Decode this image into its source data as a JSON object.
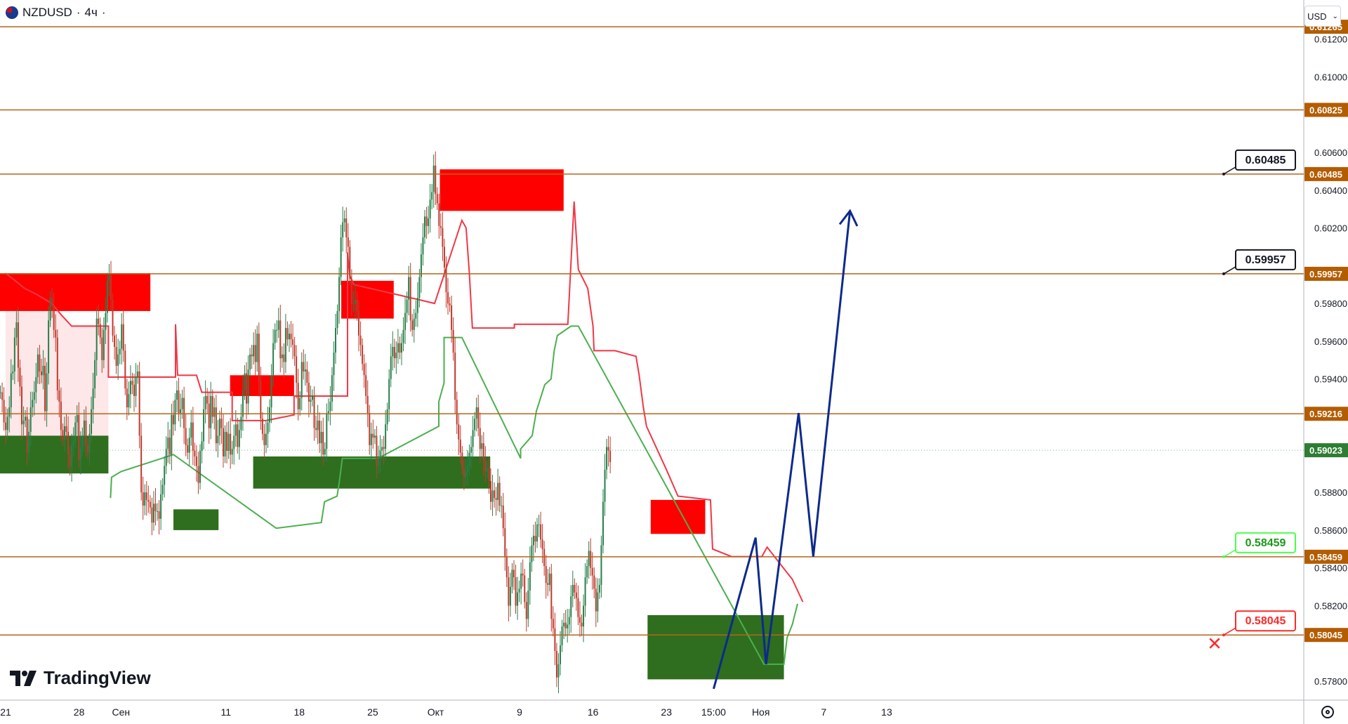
{
  "header": {
    "symbol": "NZDUSD",
    "separator": "·",
    "interval": "4ч",
    "currency": "USD"
  },
  "branding": {
    "logo_text": "TradingView"
  },
  "colors": {
    "level_line": "#b5651d",
    "level_label": "#b35c00",
    "resistance": "#ff0000",
    "support": "#2e6e1e",
    "trail_red": "#f23645",
    "trail_green": "#4caf50",
    "candle_up": "#26804a",
    "candle_down": "#c0392b",
    "forecast": "#0d2a8c",
    "callout_green": "#4cff4c",
    "callout_red": "#ff2a2a"
  },
  "chart_data": {
    "type": "candlestick",
    "symbol": "NZDUSD",
    "timeframe": "4h",
    "ylim": [
      0.577,
      0.6131
    ],
    "y_ticks": [
      "0.61200",
      "0.61000",
      "0.60600",
      "0.60400",
      "0.60200",
      "0.59800",
      "0.59600",
      "0.59400",
      "0.58800",
      "0.58600",
      "0.58400",
      "0.58200",
      "0.57800"
    ],
    "x_ticks": [
      {
        "label": "21",
        "day": 0
      },
      {
        "label": "28",
        "day": 7
      },
      {
        "label": "Сен",
        "day": 11
      },
      {
        "label": "11",
        "day": 21
      },
      {
        "label": "18",
        "day": 28
      },
      {
        "label": "25",
        "day": 35
      },
      {
        "label": "Окт",
        "day": 41
      },
      {
        "label": "9",
        "day": 49
      },
      {
        "label": "16",
        "day": 56
      },
      {
        "label": "23",
        "day": 63
      },
      {
        "label": "15:00",
        "day": 67.5
      },
      {
        "label": "Ноя",
        "day": 72
      },
      {
        "label": "7",
        "day": 78
      },
      {
        "label": "13",
        "day": 84
      }
    ],
    "levels": [
      {
        "value": 0.61265,
        "label": "0.61265"
      },
      {
        "value": 0.60825,
        "label": "0.60825"
      },
      {
        "value": 0.60485,
        "label": "0.60485"
      },
      {
        "value": 0.59957,
        "label": "0.59957"
      },
      {
        "value": 0.59216,
        "label": "0.59216"
      },
      {
        "value": 0.58459,
        "label": "0.58459"
      },
      {
        "value": 0.58045,
        "label": "0.58045"
      }
    ],
    "current_price": {
      "value": 0.59023,
      "label": "0.59023"
    },
    "callouts": [
      {
        "value": 0.60485,
        "label": "0.60485",
        "style": "black"
      },
      {
        "value": 0.59957,
        "label": "0.59957",
        "style": "black"
      },
      {
        "value": 0.58459,
        "label": "0.58459",
        "style": "green"
      },
      {
        "value": 0.58045,
        "label": "0.58045",
        "style": "red"
      }
    ],
    "stop_marker": {
      "symbol": "✕",
      "value": 0.58
    },
    "zones": [
      {
        "kind": "resistance",
        "d0": -1,
        "d1": 13.8,
        "top": 0.5996,
        "bottom": 0.5976
      },
      {
        "kind": "resistance",
        "d0": 32,
        "d1": 37,
        "top": 0.5992,
        "bottom": 0.5972
      },
      {
        "kind": "resistance",
        "d0": 21.4,
        "d1": 27.5,
        "top": 0.5942,
        "bottom": 0.5931
      },
      {
        "kind": "resistance",
        "d0": 41.4,
        "d1": 53.2,
        "top": 0.6051,
        "bottom": 0.6029
      },
      {
        "kind": "resistance",
        "d0": 61.5,
        "d1": 66.7,
        "top": 0.5876,
        "bottom": 0.5858
      },
      {
        "kind": "support",
        "d0": -1,
        "d1": 9.8,
        "top": 0.591,
        "bottom": 0.589
      },
      {
        "kind": "support",
        "d0": 16,
        "d1": 20.3,
        "top": 0.5871,
        "bottom": 0.586
      },
      {
        "kind": "support",
        "d0": 23.6,
        "d1": 46.2,
        "top": 0.5899,
        "bottom": 0.5882
      },
      {
        "kind": "support",
        "d0": 61.2,
        "d1": 74.2,
        "top": 0.5815,
        "bottom": 0.5781
      }
    ],
    "trail_red": [
      [
        0,
        0.5996
      ],
      [
        0.7,
        0.5993
      ],
      [
        1.8,
        0.5988
      ],
      [
        2.9,
        0.5985
      ],
      [
        4.4,
        0.598
      ],
      [
        5.3,
        0.5974
      ],
      [
        6.3,
        0.5968
      ],
      [
        9.8,
        0.5968
      ],
      [
        9.8,
        0.5941
      ],
      [
        16.2,
        0.5941
      ],
      [
        16.2,
        0.5969
      ],
      [
        16.4,
        0.5942
      ],
      [
        18.2,
        0.5942
      ],
      [
        18.7,
        0.5933
      ],
      [
        21.6,
        0.5933
      ],
      [
        21.6,
        0.5918
      ],
      [
        24.8,
        0.5918
      ],
      [
        27.5,
        0.5921
      ],
      [
        27.5,
        0.5931
      ],
      [
        32.6,
        0.5931
      ],
      [
        32.6,
        0.6007
      ],
      [
        32.8,
        0.5995
      ],
      [
        33.2,
        0.599
      ],
      [
        39.4,
        0.5982
      ],
      [
        40.9,
        0.598
      ],
      [
        43.5,
        0.6024
      ],
      [
        43.9,
        0.602
      ],
      [
        44.2,
        0.5997
      ],
      [
        44.5,
        0.5967
      ],
      [
        48.5,
        0.5967
      ],
      [
        48.5,
        0.5969
      ],
      [
        53.6,
        0.5969
      ],
      [
        54.2,
        0.6034
      ],
      [
        54.6,
        0.5998
      ],
      [
        55.5,
        0.5988
      ],
      [
        56.0,
        0.5968
      ],
      [
        56.1,
        0.5955
      ],
      [
        58.1,
        0.5955
      ],
      [
        60.1,
        0.5952
      ],
      [
        60.4,
        0.5942
      ],
      [
        60.8,
        0.5925
      ],
      [
        61.1,
        0.5915
      ],
      [
        63.0,
        0.5892
      ],
      [
        64.1,
        0.5878
      ],
      [
        67.2,
        0.5876
      ],
      [
        67.4,
        0.585
      ],
      [
        69.2,
        0.5846
      ],
      [
        72.1,
        0.5846
      ],
      [
        72.6,
        0.5851
      ],
      [
        74.0,
        0.5841
      ],
      [
        75.0,
        0.5834
      ],
      [
        76.0,
        0.5822
      ]
    ],
    "trail_green": [
      [
        10,
        0.5877
      ],
      [
        10.1,
        0.5888
      ],
      [
        11.0,
        0.5891
      ],
      [
        16.0,
        0.59
      ],
      [
        25.8,
        0.5861
      ],
      [
        30.1,
        0.5864
      ],
      [
        30.4,
        0.5875
      ],
      [
        31.6,
        0.5878
      ],
      [
        31.8,
        0.5885
      ],
      [
        32.1,
        0.5898
      ],
      [
        35.5,
        0.5898
      ],
      [
        41.3,
        0.5915
      ],
      [
        41.3,
        0.5928
      ],
      [
        41.8,
        0.5938
      ],
      [
        41.8,
        0.5962
      ],
      [
        43.5,
        0.5962
      ],
      [
        49.1,
        0.5898
      ],
      [
        49.1,
        0.5903
      ],
      [
        50.2,
        0.591
      ],
      [
        50.6,
        0.5923
      ],
      [
        51.4,
        0.5937
      ],
      [
        52.0,
        0.594
      ],
      [
        52.3,
        0.5955
      ],
      [
        52.6,
        0.5963
      ],
      [
        53.9,
        0.5968
      ],
      [
        54.6,
        0.5968
      ],
      [
        72.3,
        0.5789
      ],
      [
        74.2,
        0.5789
      ],
      [
        74.5,
        0.5803
      ],
      [
        75.0,
        0.581
      ],
      [
        75.5,
        0.5821
      ]
    ],
    "candles": {
      "start_day": -0.5,
      "step": 0.17,
      "closes": [
        0.5933,
        0.5929,
        0.5917,
        0.5913,
        0.592,
        0.5925,
        0.5943,
        0.5944,
        0.5962,
        0.597,
        0.5946,
        0.5936,
        0.5916,
        0.5918,
        0.592,
        0.5901,
        0.5912,
        0.5925,
        0.5929,
        0.5933,
        0.5941,
        0.5953,
        0.5944,
        0.5942,
        0.5947,
        0.5923,
        0.5943,
        0.5971,
        0.5983,
        0.5979,
        0.5966,
        0.5962,
        0.5934,
        0.5928,
        0.5913,
        0.5908,
        0.5915,
        0.5912,
        0.59,
        0.5894,
        0.5905,
        0.5907,
        0.5917,
        0.5921,
        0.5897,
        0.5904,
        0.591,
        0.5918,
        0.5905,
        0.5901,
        0.5911,
        0.5924,
        0.5935,
        0.595,
        0.5972,
        0.5969,
        0.5962,
        0.595,
        0.5966,
        0.5975,
        0.5992,
        0.5995,
        0.5982,
        0.5963,
        0.5957,
        0.5947,
        0.5953,
        0.5956,
        0.5969,
        0.5955,
        0.5935,
        0.5925,
        0.5932,
        0.5939,
        0.5937,
        0.5931,
        0.5941,
        0.5944,
        0.591,
        0.588,
        0.5873,
        0.588,
        0.5876,
        0.5875,
        0.5872,
        0.5864,
        0.5874,
        0.587,
        0.587,
        0.5866,
        0.5879,
        0.5884,
        0.5894,
        0.5903,
        0.5909,
        0.59,
        0.5921,
        0.5916,
        0.5929,
        0.5934,
        0.5922,
        0.5924,
        0.593,
        0.5914,
        0.5905,
        0.5901,
        0.5909,
        0.5917,
        0.5902,
        0.5899,
        0.5894,
        0.5885,
        0.5902,
        0.5907,
        0.5924,
        0.5931,
        0.5927,
        0.5914,
        0.5931,
        0.592,
        0.5925,
        0.5906,
        0.591,
        0.5919,
        0.5914,
        0.5899,
        0.5912,
        0.5902,
        0.5911,
        0.59,
        0.5903,
        0.591,
        0.5916,
        0.5904,
        0.5913,
        0.592,
        0.5934,
        0.5943,
        0.5927,
        0.5945,
        0.5953,
        0.5952,
        0.5958,
        0.5949,
        0.5964,
        0.5939,
        0.5919,
        0.5911,
        0.5905,
        0.5911,
        0.5917,
        0.5925,
        0.5942,
        0.5959,
        0.5966,
        0.5966,
        0.5971,
        0.5951,
        0.5953,
        0.5949,
        0.5967,
        0.5961,
        0.5964,
        0.5961,
        0.5958,
        0.5952,
        0.5938,
        0.5924,
        0.593,
        0.5949,
        0.5944,
        0.5945,
        0.5938,
        0.5928,
        0.5929,
        0.5931,
        0.5914,
        0.5913,
        0.5918,
        0.5906,
        0.5912,
        0.59,
        0.5903,
        0.5922,
        0.5923,
        0.5928,
        0.5942,
        0.5954,
        0.5967,
        0.5976,
        0.5994,
        0.6015,
        0.6023,
        0.6025,
        0.6015,
        0.601,
        0.5993,
        0.598,
        0.598,
        0.5982,
        0.5976,
        0.5963,
        0.5958,
        0.5948,
        0.5942,
        0.5931,
        0.5922,
        0.5905,
        0.5911,
        0.5909,
        0.591,
        0.5894,
        0.5898,
        0.5902,
        0.5904,
        0.5903,
        0.5916,
        0.5924,
        0.594,
        0.5952,
        0.5957,
        0.5951,
        0.5954,
        0.5959,
        0.5954,
        0.5959,
        0.5966,
        0.5975,
        0.5982,
        0.5994,
        0.5971,
        0.5966,
        0.5972,
        0.5975,
        0.5983,
        0.5994,
        0.6006,
        0.6015,
        0.6026,
        0.6021,
        0.6025,
        0.6035,
        0.6039,
        0.6053,
        0.6038,
        0.6033,
        0.6021,
        0.602,
        0.601,
        0.5999,
        0.5986,
        0.598,
        0.5979,
        0.5966,
        0.5954,
        0.5929,
        0.5916,
        0.5908,
        0.5901,
        0.5893,
        0.5888,
        0.5891,
        0.5894,
        0.5901,
        0.5904,
        0.5913,
        0.5919,
        0.5925,
        0.5914,
        0.5903,
        0.5906,
        0.5897,
        0.5891,
        0.5893,
        0.5886,
        0.5875,
        0.5881,
        0.5877,
        0.5876,
        0.5885,
        0.5873,
        0.5873,
        0.5861,
        0.5846,
        0.5835,
        0.582,
        0.583,
        0.5839,
        0.5835,
        0.582,
        0.5827,
        0.5829,
        0.5837,
        0.5836,
        0.5822,
        0.5813,
        0.5828,
        0.5843,
        0.5852,
        0.5857,
        0.5854,
        0.5863,
        0.5863,
        0.5855,
        0.585,
        0.5841,
        0.5832,
        0.5831,
        0.5837,
        0.5813,
        0.5808,
        0.5796,
        0.5782,
        0.5789,
        0.5799,
        0.5809,
        0.5811,
        0.5808,
        0.581,
        0.5814,
        0.5825,
        0.5831,
        0.5827,
        0.5824,
        0.5814,
        0.5811,
        0.5809,
        0.582,
        0.5835,
        0.5841,
        0.5849,
        0.584,
        0.5836,
        0.5829,
        0.5817,
        0.5827,
        0.5831,
        0.5852,
        0.5875,
        0.5892,
        0.5904,
        0.5902,
        0.5896
      ]
    },
    "forecast_path": [
      [
        67.5,
        0.5776
      ],
      [
        71.5,
        0.5856
      ],
      [
        72.5,
        0.5789
      ],
      [
        75.6,
        0.5922
      ],
      [
        77.0,
        0.5846
      ],
      [
        80.5,
        0.6029
      ]
    ]
  }
}
